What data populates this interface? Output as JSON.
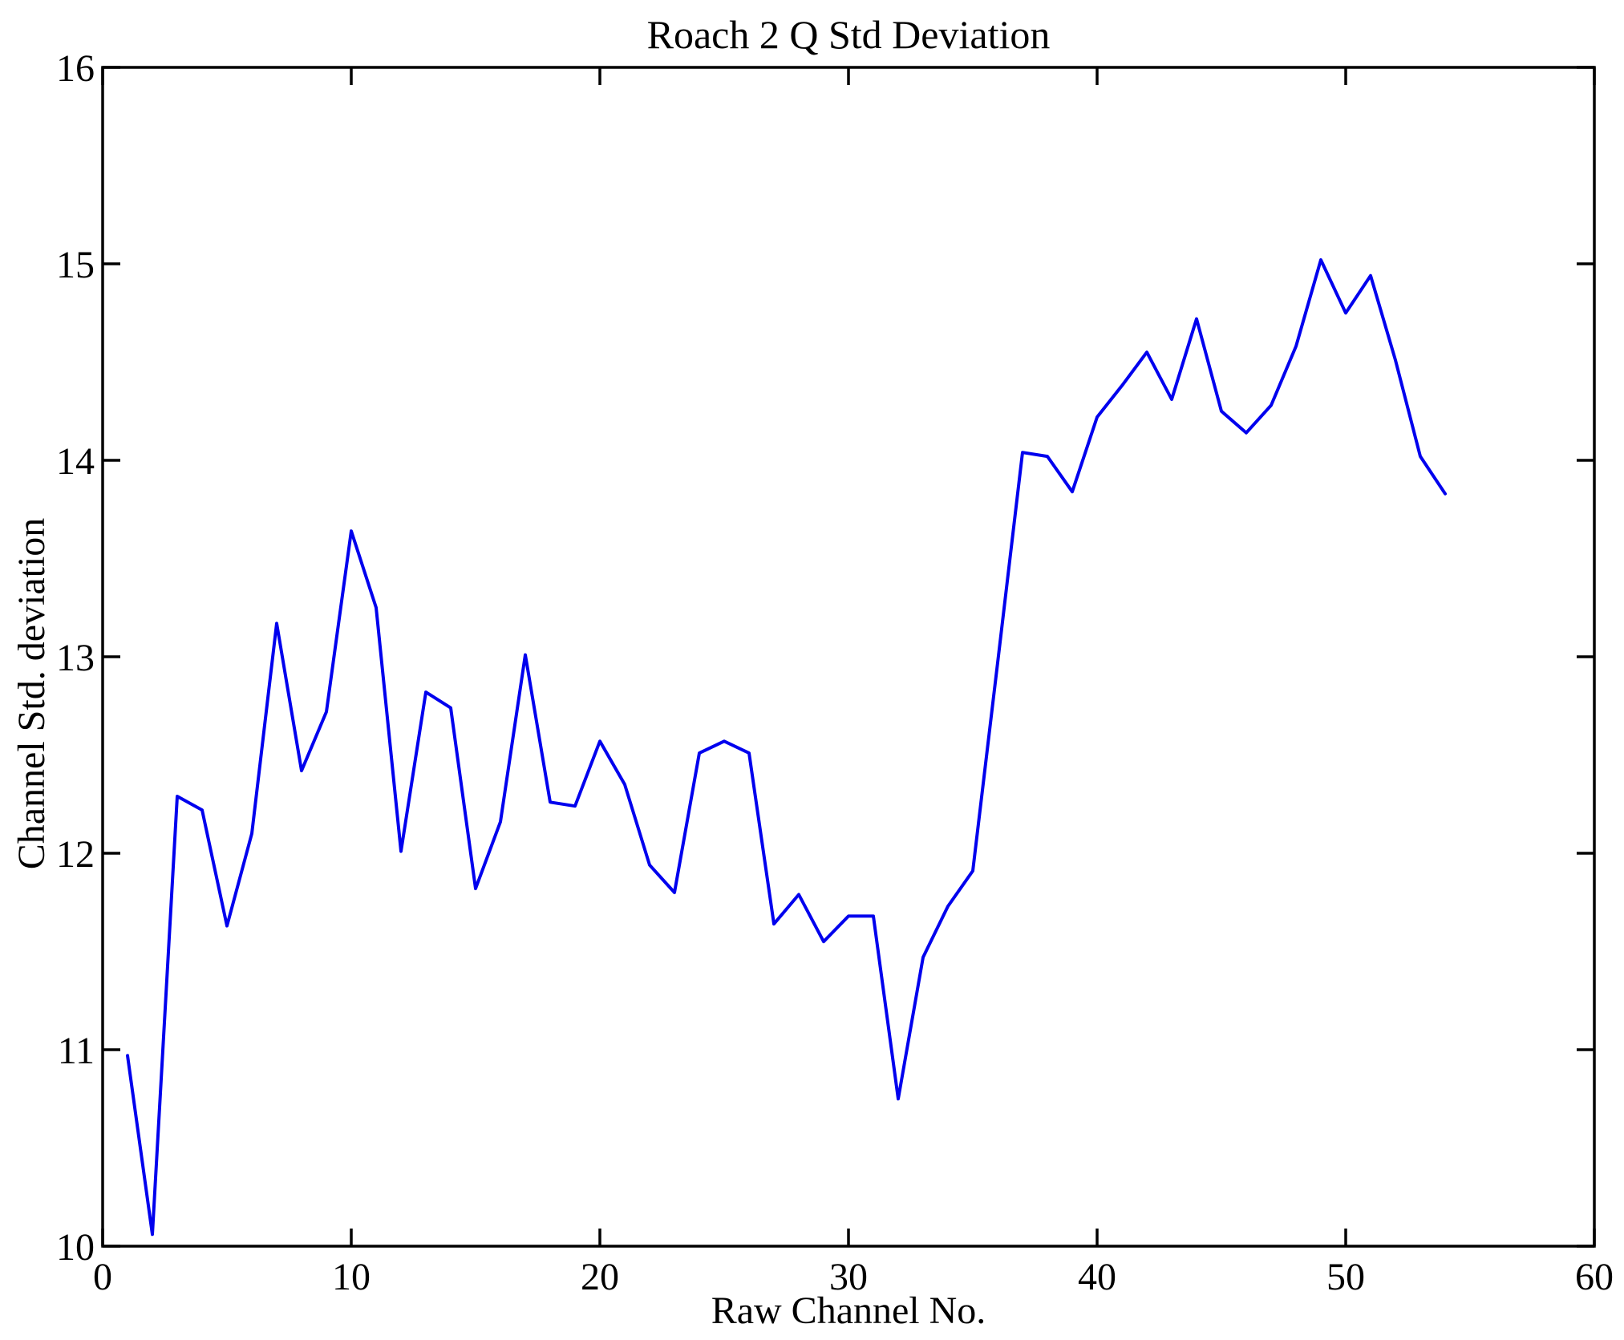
{
  "frame": {
    "background": "#ffffff",
    "axis_color": "#000000"
  },
  "chart_data": {
    "type": "line",
    "title": "Roach 2 Q Std Deviation",
    "xlabel": "Raw Channel No.",
    "ylabel": "Channel Std. deviation",
    "xlim": [
      0,
      60
    ],
    "ylim": [
      10,
      16
    ],
    "x_ticks": [
      "0",
      "10",
      "20",
      "30",
      "40",
      "50",
      "60"
    ],
    "x_tick_values": [
      0,
      10,
      20,
      30,
      40,
      50,
      60
    ],
    "y_ticks": [
      "10",
      "11",
      "12",
      "13",
      "14",
      "15",
      "16"
    ],
    "y_tick_values": [
      10,
      11,
      12,
      13,
      14,
      15,
      16
    ],
    "grid": false,
    "legend_position": "none",
    "line_color": "#0000ee",
    "series": [
      {
        "name": "channel-std-deviation",
        "x": [
          1,
          2,
          3,
          4,
          5,
          6,
          7,
          8,
          9,
          10,
          11,
          12,
          13,
          14,
          15,
          16,
          17,
          18,
          19,
          20,
          21,
          22,
          23,
          24,
          25,
          26,
          27,
          28,
          29,
          30,
          31,
          32,
          33,
          34,
          35,
          36,
          37,
          38,
          39,
          40,
          41,
          42,
          43,
          44,
          45,
          46,
          47,
          48,
          49,
          50,
          51,
          52,
          53,
          54
        ],
        "y": [
          10.97,
          10.06,
          12.29,
          12.22,
          11.63,
          12.1,
          13.17,
          12.42,
          12.72,
          13.64,
          13.25,
          12.01,
          12.82,
          12.74,
          11.82,
          12.16,
          13.01,
          12.26,
          12.24,
          12.57,
          12.35,
          11.94,
          11.8,
          12.51,
          12.57,
          12.51,
          11.64,
          11.79,
          11.55,
          11.68,
          11.68,
          10.75,
          11.47,
          11.73,
          11.91,
          12.97,
          14.04,
          14.02,
          13.84,
          14.22,
          14.38,
          14.55,
          14.31,
          14.72,
          14.25,
          14.14,
          14.28,
          14.58,
          15.02,
          14.75,
          14.94,
          14.51,
          14.02,
          13.83
        ]
      }
    ]
  }
}
